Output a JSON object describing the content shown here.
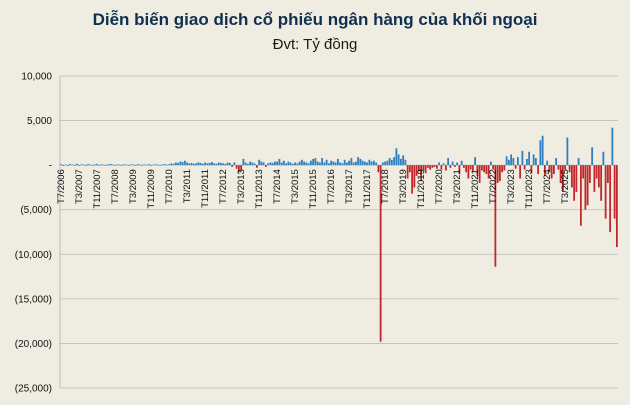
{
  "title": "Diễn biến giao dịch cổ phiếu ngân hàng của khối ngoại",
  "unit_label": "Đvt: Tỷ đồng",
  "colors": {
    "background": "#efece1",
    "title": "#0f3050",
    "positive": "#2f7fbf",
    "negative": "#c0282d",
    "grid": "#bdbdbd"
  },
  "chart_data": {
    "type": "bar",
    "title": "Diễn biến giao dịch cổ phiếu ngân hàng của khối ngoại",
    "ylabel": "Đvt: Tỷ đồng",
    "ylim": [
      -25000,
      10000
    ],
    "ytick_values": [
      10000,
      5000,
      0,
      -5000,
      -10000,
      -15000,
      -20000,
      -25000
    ],
    "ytick_labels": [
      "10,000",
      "5,000",
      "-",
      "(5,000)",
      "(10,000)",
      "(15,000)",
      "(20,000)",
      "(25,000)"
    ],
    "xtick_labels": [
      "T7/2006",
      "T3/2007",
      "T11/2007",
      "T7/2008",
      "T3/2009",
      "T11/2009",
      "T7/2010",
      "T3/2011",
      "T11/2011",
      "T7/2012",
      "T3/2013",
      "T11/2013",
      "T7/2014",
      "T3/2015",
      "T11/2015",
      "T7/2016",
      "T3/2017",
      "T11/2017",
      "T7/2018",
      "T3/2019",
      "T11/2019",
      "T7/2020",
      "T3/2021",
      "T11/2021",
      "T7/2022",
      "T3/2023",
      "T11/2023",
      "T7/2024",
      "T3/2025"
    ],
    "grid": true,
    "legend": "none",
    "x_start": "T7/2006",
    "x_frequency": "monthly",
    "values": [
      100,
      -80,
      60,
      -50,
      120,
      80,
      -40,
      150,
      -60,
      90,
      70,
      -30,
      110,
      60,
      -50,
      80,
      140,
      -70,
      90,
      50,
      -40,
      100,
      130,
      60,
      -50,
      80,
      60,
      -40,
      90,
      70,
      -30,
      60,
      80,
      -50,
      110,
      70,
      -60,
      80,
      50,
      100,
      -40,
      70,
      90,
      60,
      -30,
      80,
      120,
      50,
      100,
      200,
      150,
      300,
      250,
      400,
      350,
      500,
      300,
      200,
      250,
      150,
      200,
      300,
      250,
      150,
      300,
      200,
      250,
      350,
      200,
      150,
      300,
      250,
      200,
      150,
      300,
      250,
      -200,
      300,
      -400,
      -800,
      -600,
      700,
      300,
      150,
      400,
      300,
      200,
      -300,
      600,
      400,
      300,
      -200,
      200,
      300,
      250,
      400,
      400,
      700,
      300,
      500,
      200,
      400,
      300,
      150,
      300,
      200,
      400,
      600,
      400,
      300,
      200,
      500,
      700,
      800,
      400,
      300,
      800,
      300,
      600,
      200,
      500,
      400,
      300,
      700,
      300,
      200,
      600,
      300,
      500,
      800,
      300,
      400,
      900,
      700,
      500,
      400,
      300,
      600,
      400,
      500,
      300,
      -800,
      -19800,
      300,
      400,
      500,
      800,
      600,
      900,
      1900,
      1200,
      700,
      1100,
      600,
      -1500,
      -800,
      -3200,
      -2500,
      -1200,
      -700,
      -1800,
      -600,
      -900,
      -300,
      -500,
      -300,
      -200,
      -400,
      300,
      -500,
      200,
      -600,
      800,
      -300,
      400,
      -200,
      300,
      -1000,
      500,
      -300,
      -800,
      -1500,
      -500,
      -700,
      900,
      -1200,
      -2000,
      -600,
      -800,
      -1000,
      -1500,
      400,
      -500,
      -11400,
      -2000,
      -1800,
      -800,
      -600,
      1000,
      600,
      1200,
      800,
      -400,
      900,
      -1500,
      1600,
      -500,
      700,
      1500,
      -900,
      1200,
      800,
      -1000,
      2800,
      3300,
      -1200,
      500,
      -800,
      -1500,
      -1000,
      800,
      -500,
      -2000,
      -3000,
      -500,
      3100,
      -800,
      -2500,
      -4000,
      -3000,
      800,
      -6800,
      -1500,
      -5000,
      -4500,
      -2000,
      2000,
      -3000,
      -1500,
      -2500,
      -4000,
      1500,
      -6000,
      -2000,
      -7500,
      4200,
      -6000,
      -9200
    ]
  }
}
